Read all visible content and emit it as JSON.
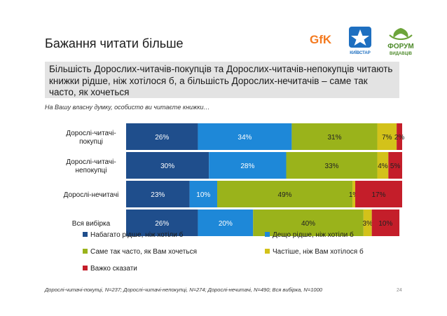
{
  "page": {
    "title": "Бажання читати більше",
    "headline": "Більшість Дорослих-читачів-покупців та Дорослих-читачів-непокупців читають книжки рідше, ніж хотілося б, а більшість Дорослих-нечитачів – саме так часто, як хочеться",
    "question": "На Вашу власну думку, особисто ви читаєте книжки…",
    "footnote": "Дорослі-читачі-покупці, N=237; Дорослі-читачі-непокупці, N=274; Дорослі-нечитачі, N=490; Вся вибірка, N=1000",
    "page_number": "24"
  },
  "logos": {
    "gfk": "GfK",
    "kyivstar": "КИЇВСТАР",
    "forum": "ФОРУМ",
    "forum_sub": "ВИДАВЦІВ"
  },
  "colors": {
    "series": [
      "#1f4e8c",
      "#1e88d8",
      "#9ab31b",
      "#d3c21a",
      "#c41e2a"
    ],
    "headline_bg": "#e3e3e3"
  },
  "chart_data": {
    "type": "bar",
    "orientation": "horizontal-stacked-100",
    "categories": [
      "Дорослі-читачі-покупці",
      "Дорослі-читачі-непокупці",
      "Дорослі-нечитачі",
      "Вся вибірка"
    ],
    "series": [
      {
        "name": "Набагато рідше, ніж хотіли б",
        "values": [
          26,
          30,
          23,
          26
        ],
        "labels": [
          "26%",
          "30%",
          "23%",
          "26%"
        ]
      },
      {
        "name": "Дещо рідше, ніж хотіли б",
        "values": [
          34,
          28,
          10,
          20
        ],
        "labels": [
          "34%",
          "28%",
          "10%",
          "20%"
        ]
      },
      {
        "name": "Саме так часто, як Вам хочеться",
        "values": [
          31,
          33,
          49,
          40
        ],
        "labels": [
          "31%",
          "33%",
          "49%",
          "40%"
        ]
      },
      {
        "name": "Частіше, ніж Вам хотілося б",
        "values": [
          7,
          4,
          1,
          3
        ],
        "labels": [
          "7%",
          "4%",
          "1%",
          "3%"
        ]
      },
      {
        "name": "Важко сказати",
        "values": [
          2,
          5,
          17,
          10
        ],
        "labels": [
          "2%",
          "5%",
          "17%",
          "10%"
        ]
      }
    ],
    "xlim": [
      0,
      100
    ],
    "legend_position": "bottom",
    "grid": false
  }
}
